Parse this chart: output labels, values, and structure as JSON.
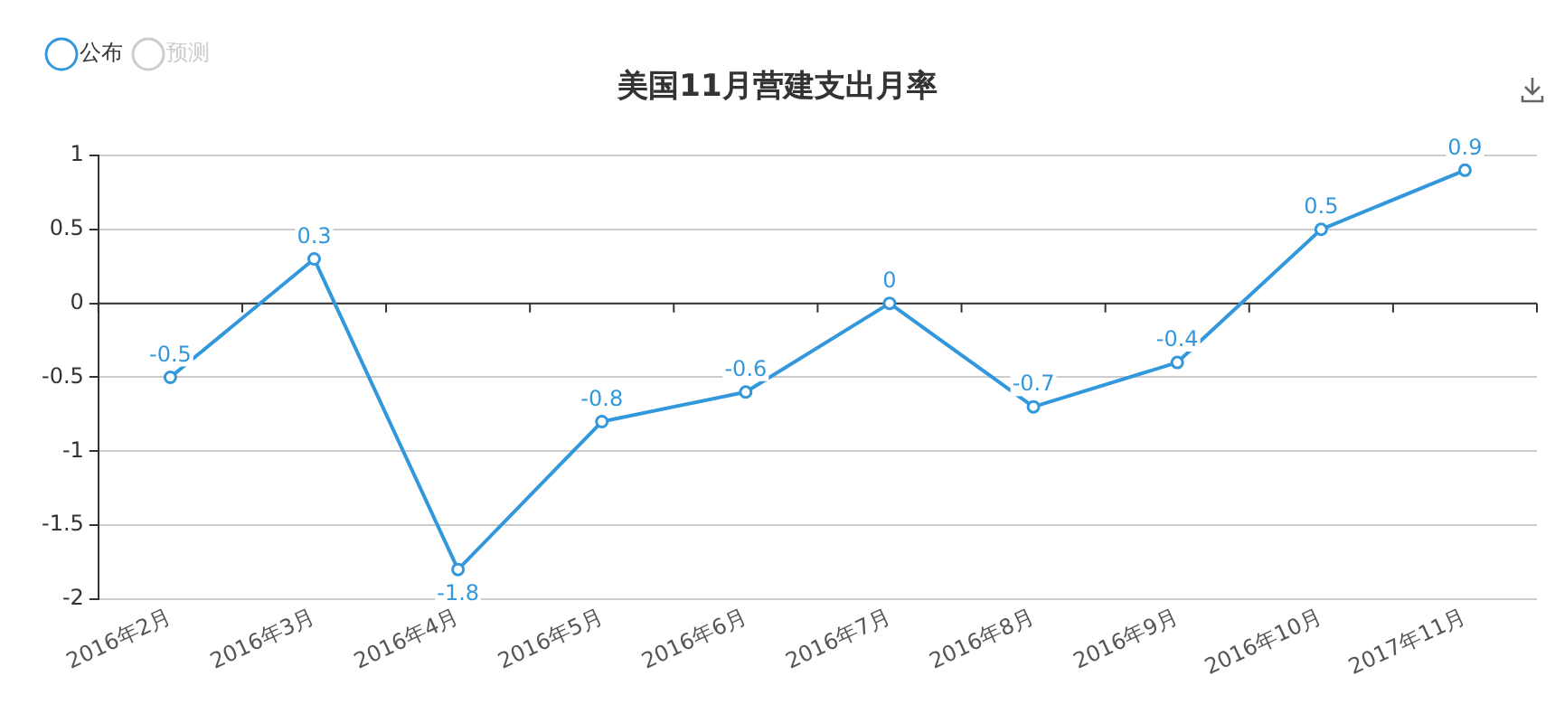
{
  "chart_data": {
    "type": "line",
    "title": "美国11月营建支出月率",
    "categories": [
      "2016年2月",
      "2016年3月",
      "2016年4月",
      "2016年5月",
      "2016年6月",
      "2016年7月",
      "2016年8月",
      "2016年9月",
      "2016年10月",
      "2017年11月"
    ],
    "series": [
      {
        "name": "公布",
        "color": "#3398db",
        "values": [
          -0.5,
          0.3,
          -1.8,
          -0.8,
          -0.6,
          0,
          -0.7,
          -0.4,
          0.5,
          0.9
        ]
      },
      {
        "name": "预测",
        "color": "#cccccc",
        "values": [
          null,
          null,
          null,
          null,
          null,
          null,
          null,
          null,
          null,
          null
        ]
      }
    ],
    "ylim": [
      -2,
      1
    ],
    "yticks": [
      -2,
      -1.5,
      -1,
      -0.5,
      0,
      0.5,
      1
    ],
    "grid": "y",
    "legend": "top left",
    "marker": "circle",
    "line_style": "solid",
    "data_labels": true
  }
}
